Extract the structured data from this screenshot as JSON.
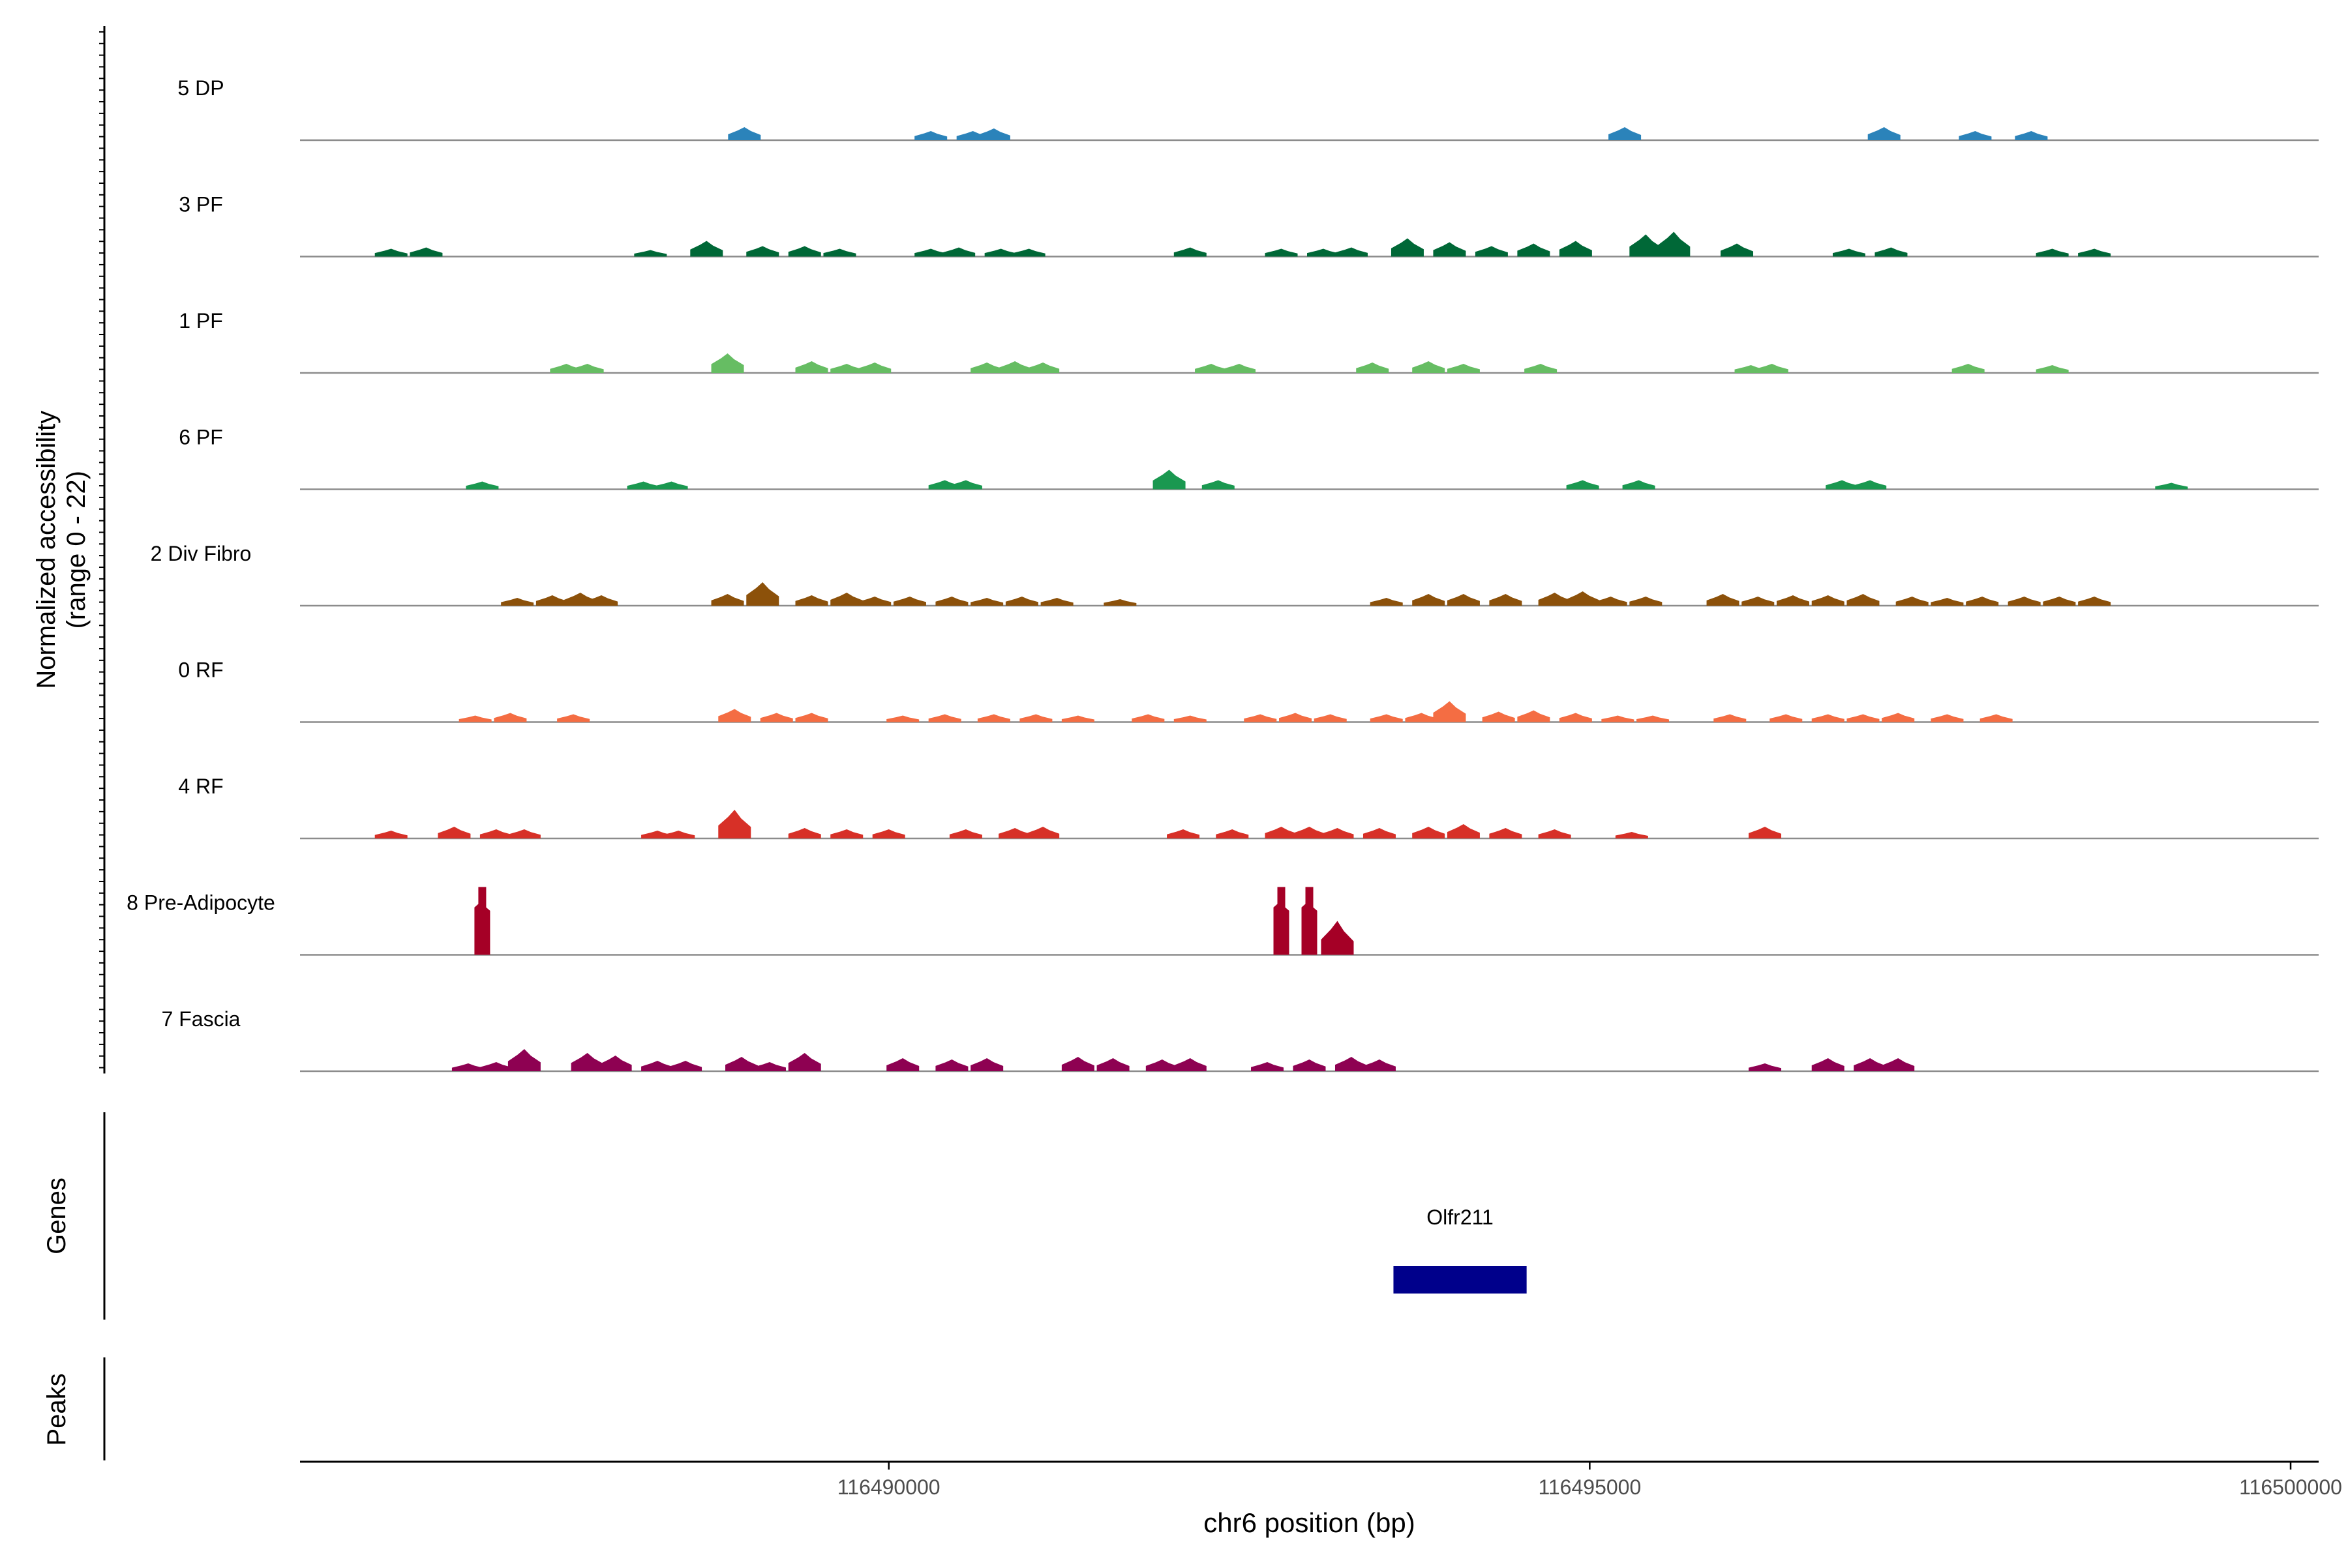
{
  "chart_data": {
    "type": "area",
    "title": "",
    "ylabel": "Normalized accessibility\n(range 0 - 22)",
    "xlabel": "chr6 position (bp)",
    "xlim": [
      116485800,
      116500200
    ],
    "x_ticks": [
      116490000,
      116495000,
      116500000
    ],
    "x_tick_labels": [
      "116490000",
      "116495000",
      "116500000"
    ],
    "genes_label": "Genes",
    "peaks_label": "Peaks",
    "genes": [
      {
        "name": "Olfr211",
        "start": 116493600,
        "end": 116494550,
        "color": "#00008B"
      }
    ],
    "series": [
      {
        "name": "5 DP",
        "color": "#2B83BA",
        "peaks": [
          [
            116488970,
            0.5
          ],
          [
            116490300,
            0.35
          ],
          [
            116490600,
            0.35
          ],
          [
            116490750,
            0.45
          ],
          [
            116495250,
            0.5
          ],
          [
            116497100,
            0.5
          ],
          [
            116497750,
            0.35
          ],
          [
            116498150,
            0.35
          ]
        ]
      },
      {
        "name": "3 PF",
        "color": "#006837",
        "peaks": [
          [
            116486450,
            0.3
          ],
          [
            116486700,
            0.35
          ],
          [
            116488300,
            0.25
          ],
          [
            116488700,
            0.6
          ],
          [
            116489100,
            0.4
          ],
          [
            116489400,
            0.4
          ],
          [
            116489650,
            0.3
          ],
          [
            116490300,
            0.3
          ],
          [
            116490500,
            0.35
          ],
          [
            116490800,
            0.3
          ],
          [
            116491000,
            0.3
          ],
          [
            116492150,
            0.35
          ],
          [
            116492800,
            0.3
          ],
          [
            116493100,
            0.3
          ],
          [
            116493300,
            0.35
          ],
          [
            116493700,
            0.7
          ],
          [
            116494000,
            0.55
          ],
          [
            116494300,
            0.4
          ],
          [
            116494600,
            0.5
          ],
          [
            116494900,
            0.6
          ],
          [
            116495400,
            0.85
          ],
          [
            116495600,
            0.95
          ],
          [
            116496050,
            0.5
          ],
          [
            116496850,
            0.3
          ],
          [
            116497150,
            0.35
          ],
          [
            116498300,
            0.3
          ],
          [
            116498600,
            0.3
          ]
        ]
      },
      {
        "name": "1 PF",
        "color": "#66BD63",
        "peaks": [
          [
            116487700,
            0.35
          ],
          [
            116487850,
            0.35
          ],
          [
            116488850,
            0.75
          ],
          [
            116489450,
            0.45
          ],
          [
            116489700,
            0.35
          ],
          [
            116489900,
            0.4
          ],
          [
            116490700,
            0.4
          ],
          [
            116490900,
            0.45
          ],
          [
            116491100,
            0.4
          ],
          [
            116492300,
            0.35
          ],
          [
            116492500,
            0.35
          ],
          [
            116493450,
            0.4
          ],
          [
            116493850,
            0.45
          ],
          [
            116494100,
            0.35
          ],
          [
            116494650,
            0.35
          ],
          [
            116496150,
            0.3
          ],
          [
            116496300,
            0.35
          ],
          [
            116497700,
            0.35
          ],
          [
            116498300,
            0.3
          ]
        ]
      },
      {
        "name": "6 PF",
        "color": "#1A9850",
        "peaks": [
          [
            116487100,
            0.3
          ],
          [
            116488250,
            0.3
          ],
          [
            116488450,
            0.3
          ],
          [
            116490400,
            0.35
          ],
          [
            116490550,
            0.35
          ],
          [
            116492000,
            0.75
          ],
          [
            116492350,
            0.35
          ],
          [
            116494950,
            0.35
          ],
          [
            116495350,
            0.35
          ],
          [
            116496800,
            0.35
          ],
          [
            116497000,
            0.35
          ],
          [
            116499150,
            0.25
          ]
        ]
      },
      {
        "name": "2 Div Fibro",
        "color": "#8C510A",
        "peaks": [
          [
            116487350,
            0.3
          ],
          [
            116487600,
            0.4
          ],
          [
            116487800,
            0.5
          ],
          [
            116487950,
            0.4
          ],
          [
            116488850,
            0.45
          ],
          [
            116489100,
            0.9
          ],
          [
            116489450,
            0.4
          ],
          [
            116489700,
            0.5
          ],
          [
            116489900,
            0.35
          ],
          [
            116490150,
            0.35
          ],
          [
            116490450,
            0.35
          ],
          [
            116490700,
            0.3
          ],
          [
            116490950,
            0.35
          ],
          [
            116491200,
            0.3
          ],
          [
            116491650,
            0.25
          ],
          [
            116493550,
            0.3
          ],
          [
            116493850,
            0.45
          ],
          [
            116494100,
            0.45
          ],
          [
            116494400,
            0.45
          ],
          [
            116494750,
            0.5
          ],
          [
            116494950,
            0.55
          ],
          [
            116495150,
            0.35
          ],
          [
            116495400,
            0.35
          ],
          [
            116495950,
            0.45
          ],
          [
            116496200,
            0.35
          ],
          [
            116496450,
            0.4
          ],
          [
            116496700,
            0.4
          ],
          [
            116496950,
            0.45
          ],
          [
            116497300,
            0.35
          ],
          [
            116497550,
            0.3
          ],
          [
            116497800,
            0.35
          ],
          [
            116498100,
            0.35
          ],
          [
            116498350,
            0.35
          ],
          [
            116498600,
            0.35
          ]
        ]
      },
      {
        "name": "0 RF",
        "color": "#F46D43",
        "peaks": [
          [
            116487050,
            0.25
          ],
          [
            116487300,
            0.35
          ],
          [
            116487750,
            0.3
          ],
          [
            116488900,
            0.5
          ],
          [
            116489200,
            0.35
          ],
          [
            116489450,
            0.35
          ],
          [
            116490100,
            0.25
          ],
          [
            116490400,
            0.3
          ],
          [
            116490750,
            0.3
          ],
          [
            116491050,
            0.3
          ],
          [
            116491350,
            0.25
          ],
          [
            116491850,
            0.3
          ],
          [
            116492150,
            0.25
          ],
          [
            116492650,
            0.3
          ],
          [
            116492900,
            0.35
          ],
          [
            116493150,
            0.3
          ],
          [
            116493550,
            0.3
          ],
          [
            116493800,
            0.35
          ],
          [
            116494000,
            0.8
          ],
          [
            116494350,
            0.4
          ],
          [
            116494600,
            0.45
          ],
          [
            116494900,
            0.35
          ],
          [
            116495200,
            0.25
          ],
          [
            116495450,
            0.25
          ],
          [
            116496000,
            0.3
          ],
          [
            116496400,
            0.3
          ],
          [
            116496700,
            0.3
          ],
          [
            116496950,
            0.3
          ],
          [
            116497200,
            0.35
          ],
          [
            116497550,
            0.3
          ],
          [
            116497900,
            0.3
          ]
        ]
      },
      {
        "name": "4 RF",
        "color": "#D73027",
        "peaks": [
          [
            116486450,
            0.3
          ],
          [
            116486900,
            0.45
          ],
          [
            116487200,
            0.35
          ],
          [
            116487400,
            0.35
          ],
          [
            116488350,
            0.3
          ],
          [
            116488500,
            0.3
          ],
          [
            116488900,
            1.1
          ],
          [
            116489400,
            0.4
          ],
          [
            116489700,
            0.35
          ],
          [
            116490000,
            0.35
          ],
          [
            116490550,
            0.35
          ],
          [
            116490900,
            0.4
          ],
          [
            116491100,
            0.45
          ],
          [
            116492100,
            0.35
          ],
          [
            116492450,
            0.35
          ],
          [
            116492800,
            0.45
          ],
          [
            116493000,
            0.45
          ],
          [
            116493200,
            0.4
          ],
          [
            116493500,
            0.4
          ],
          [
            116493850,
            0.45
          ],
          [
            116494100,
            0.55
          ],
          [
            116494400,
            0.4
          ],
          [
            116494750,
            0.35
          ],
          [
            116495300,
            0.25
          ],
          [
            116496250,
            0.45
          ]
        ]
      },
      {
        "name": "8 Pre-Adipocyte",
        "color": "#A50026",
        "peaks": [
          [
            116487100,
            2.6
          ],
          [
            116492800,
            2.6
          ],
          [
            116493000,
            2.6
          ],
          [
            116493200,
            1.3
          ]
        ]
      },
      {
        "name": "7 Fascia",
        "color": "#8E0152",
        "peaks": [
          [
            116487000,
            0.3
          ],
          [
            116487200,
            0.35
          ],
          [
            116487400,
            0.85
          ],
          [
            116487850,
            0.7
          ],
          [
            116488050,
            0.6
          ],
          [
            116488350,
            0.4
          ],
          [
            116488550,
            0.4
          ],
          [
            116488950,
            0.55
          ],
          [
            116489150,
            0.35
          ],
          [
            116489400,
            0.7
          ],
          [
            116490100,
            0.5
          ],
          [
            116490450,
            0.45
          ],
          [
            116490700,
            0.5
          ],
          [
            116491350,
            0.55
          ],
          [
            116491600,
            0.5
          ],
          [
            116491950,
            0.45
          ],
          [
            116492150,
            0.5
          ],
          [
            116492700,
            0.35
          ],
          [
            116493000,
            0.45
          ],
          [
            116493300,
            0.55
          ],
          [
            116493500,
            0.45
          ],
          [
            116496250,
            0.3
          ],
          [
            116496700,
            0.5
          ],
          [
            116497000,
            0.5
          ],
          [
            116497200,
            0.5
          ]
        ]
      }
    ]
  }
}
